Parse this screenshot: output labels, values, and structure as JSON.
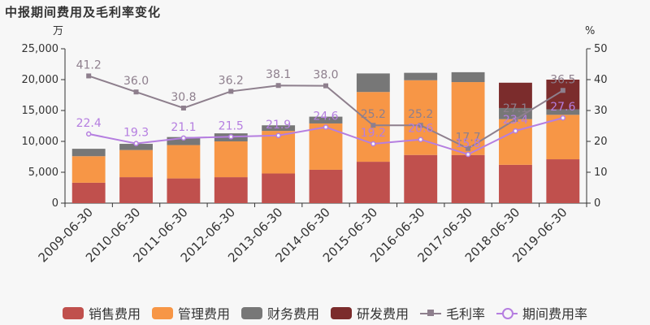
{
  "title": "中报期间费用及毛利率变化",
  "chart_data": {
    "type": "bar",
    "stacked": true,
    "categories": [
      "2009-06-30",
      "2010-06-30",
      "2011-06-30",
      "2012-06-30",
      "2013-06-30",
      "2014-06-30",
      "2015-06-30",
      "2016-06-30",
      "2017-06-30",
      "2018-06-30",
      "2019-06-30"
    ],
    "left_axis": {
      "unit": "万",
      "ylim": [
        0,
        25000
      ],
      "ticks": [
        "0",
        "5,000",
        "10,000",
        "15,000",
        "20,000",
        "25,000"
      ]
    },
    "right_axis": {
      "unit": "%",
      "ylim": [
        0,
        50
      ],
      "ticks": [
        "0",
        "10",
        "20",
        "30",
        "40",
        "50"
      ]
    },
    "series": [
      {
        "name": "销售费用",
        "kind": "bar",
        "color": "#c0504d",
        "values": [
          3300,
          4200,
          4000,
          4200,
          4800,
          5400,
          6700,
          7800,
          7800,
          6200,
          7100
        ]
      },
      {
        "name": "管理费用",
        "kind": "bar",
        "color": "#f79646",
        "values": [
          4300,
          4400,
          5400,
          5800,
          6900,
          7500,
          11300,
          12100,
          11800,
          7400,
          7200
        ]
      },
      {
        "name": "财务费用",
        "kind": "bar",
        "color": "#777777",
        "values": [
          1200,
          1000,
          1300,
          1300,
          900,
          1100,
          3000,
          1200,
          1600,
          1800,
          900
        ]
      },
      {
        "name": "研发费用",
        "kind": "bar",
        "color": "#7b2c2c",
        "values": [
          0,
          0,
          0,
          0,
          0,
          0,
          0,
          0,
          0,
          4100,
          4800
        ]
      },
      {
        "name": "毛利率",
        "kind": "line",
        "axis": "right",
        "color": "#8e7f8d",
        "marker": "square",
        "values": [
          41.2,
          36.0,
          30.8,
          36.2,
          38.1,
          38.0,
          25.2,
          25.2,
          17.7,
          27.1,
          36.5
        ]
      },
      {
        "name": "期间费用率",
        "kind": "line",
        "axis": "right",
        "color": "#b57ee0",
        "marker": "circle",
        "values": [
          22.4,
          19.3,
          21.1,
          21.5,
          21.9,
          24.6,
          19.2,
          20.6,
          15.8,
          23.4,
          27.6
        ]
      }
    ],
    "legend_position": "bottom",
    "grid": false
  }
}
